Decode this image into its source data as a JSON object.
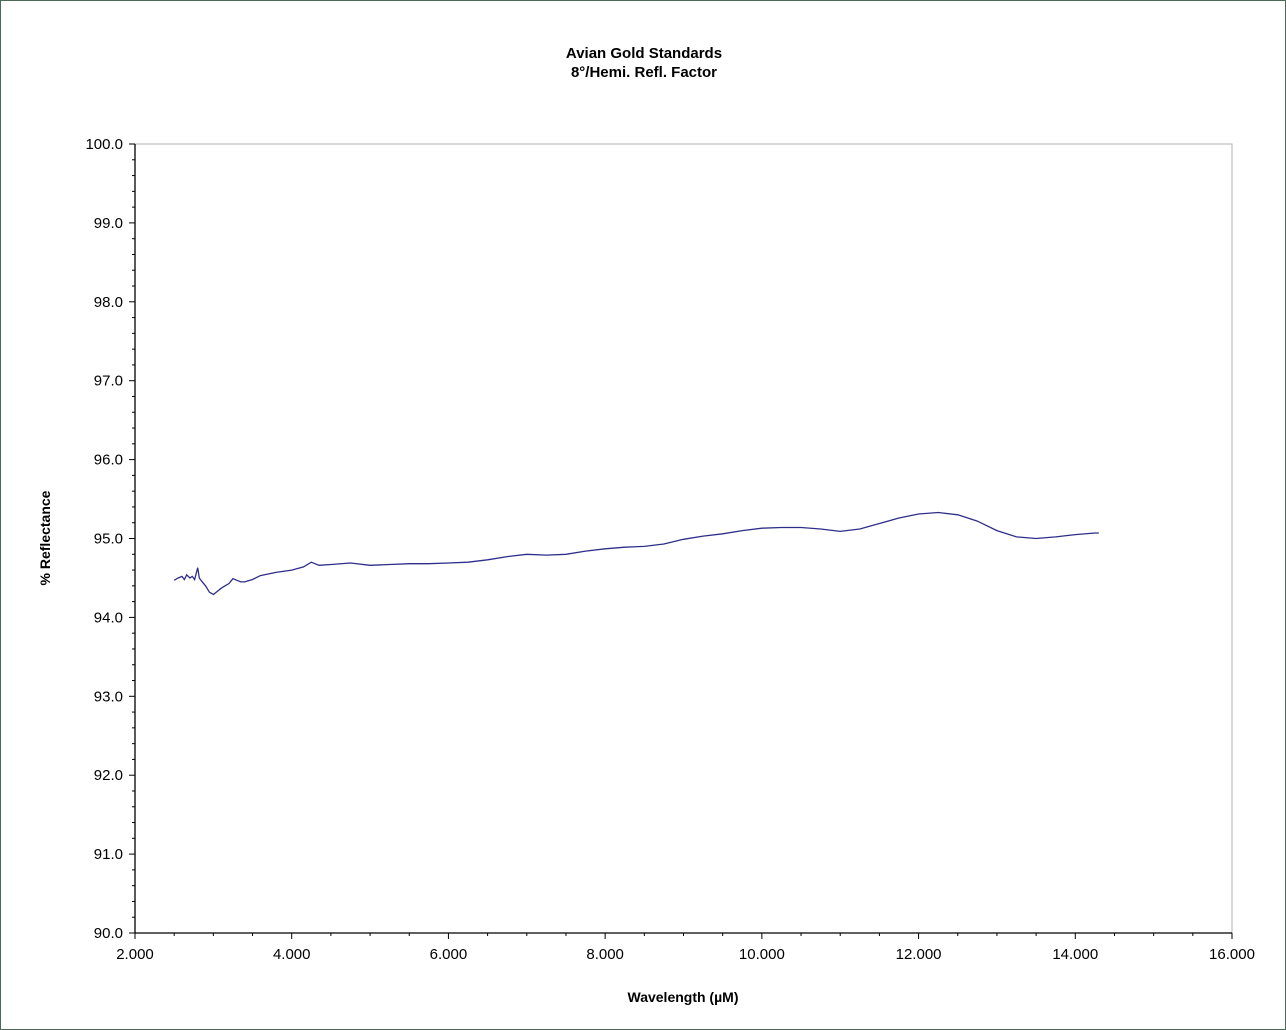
{
  "chart_data": {
    "type": "line",
    "title": "Avian Gold Standards",
    "subtitle": "8°/Hemi. Refl. Factor",
    "xlabel": "Wavelength (µM)",
    "ylabel": "% Reflectance",
    "xlim": [
      2.0,
      16.0
    ],
    "ylim": [
      90.0,
      100.0
    ],
    "x_ticks": [
      "2.000",
      "4.000",
      "6.000",
      "8.000",
      "10.000",
      "12.000",
      "14.000",
      "16.000"
    ],
    "y_ticks": [
      "90.0",
      "91.0",
      "92.0",
      "93.0",
      "94.0",
      "95.0",
      "96.0",
      "97.0",
      "98.0",
      "99.0",
      "100.0"
    ],
    "grid": false,
    "line_color": "#2e2e8a",
    "series": [
      {
        "x": [
          2.5,
          2.55,
          2.6,
          2.63,
          2.66,
          2.7,
          2.73,
          2.76,
          2.8,
          2.82,
          2.85,
          2.9,
          2.95,
          3.0,
          3.05,
          3.1,
          3.15,
          3.2,
          3.25,
          3.3,
          3.35,
          3.4,
          3.5,
          3.6,
          3.8,
          4.0,
          4.15,
          4.25,
          4.35,
          4.5,
          4.75,
          5.0,
          5.25,
          5.5,
          5.75,
          6.0,
          6.25,
          6.5,
          6.75,
          7.0,
          7.25,
          7.5,
          7.75,
          8.0,
          8.25,
          8.5,
          8.75,
          9.0,
          9.25,
          9.5,
          9.75,
          10.0,
          10.25,
          10.5,
          10.75,
          11.0,
          11.25,
          11.5,
          11.75,
          12.0,
          12.25,
          12.5,
          12.75,
          13.0,
          13.25,
          13.5,
          13.75,
          14.0,
          14.25,
          14.3
        ],
        "y": [
          94.47,
          94.5,
          94.52,
          94.48,
          94.54,
          94.5,
          94.52,
          94.48,
          94.63,
          94.5,
          94.46,
          94.4,
          94.32,
          94.29,
          94.33,
          94.37,
          94.4,
          94.43,
          94.49,
          94.47,
          94.45,
          94.45,
          94.48,
          94.53,
          94.57,
          94.6,
          94.64,
          94.7,
          94.66,
          94.67,
          94.69,
          94.66,
          94.67,
          94.68,
          94.68,
          94.69,
          94.7,
          94.73,
          94.77,
          94.8,
          94.79,
          94.8,
          94.84,
          94.87,
          94.89,
          94.9,
          94.93,
          94.99,
          95.03,
          95.06,
          95.1,
          95.13,
          95.14,
          95.14,
          95.12,
          95.09,
          95.12,
          95.19,
          95.26,
          95.31,
          95.33,
          95.3,
          95.22,
          95.1,
          95.02,
          95.0,
          95.02,
          95.05,
          95.07,
          95.07
        ]
      }
    ]
  }
}
